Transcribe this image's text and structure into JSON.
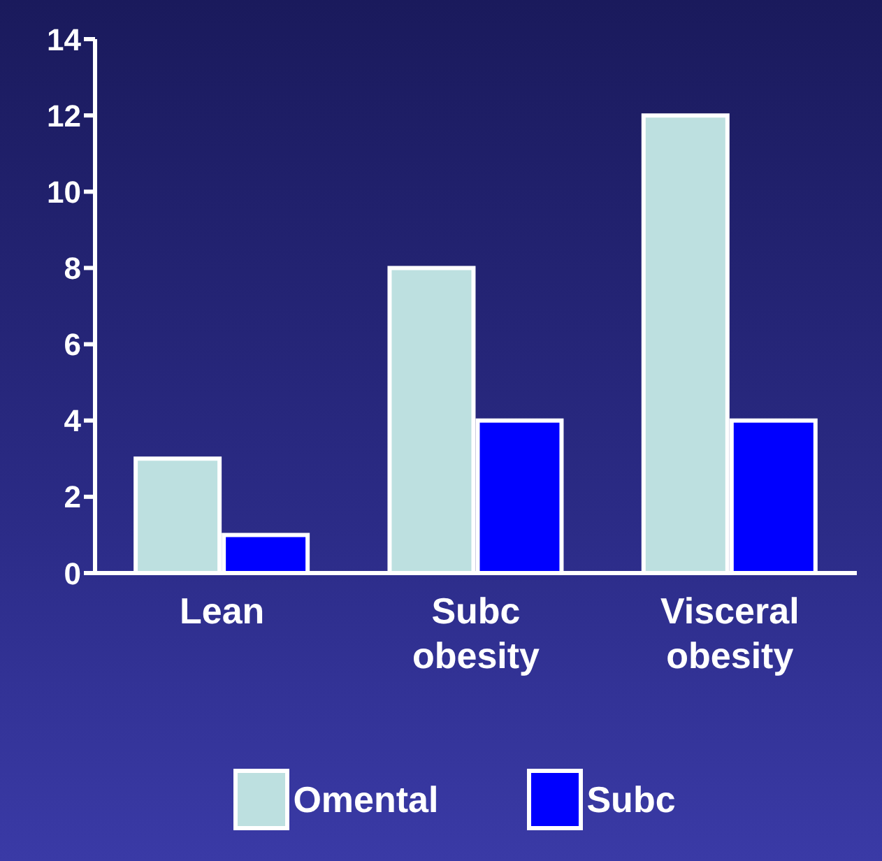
{
  "chart_data": {
    "type": "bar",
    "categories": [
      "Lean",
      "Subc obesity",
      "Visceral obesity"
    ],
    "series": [
      {
        "name": "Omental",
        "color": "#bde0e0",
        "values": [
          3,
          8,
          12
        ]
      },
      {
        "name": "Subc",
        "color": "#0000ff",
        "values": [
          1,
          4,
          4
        ]
      }
    ],
    "ylim": [
      0,
      14
    ],
    "yticks": [
      0,
      2,
      4,
      6,
      8,
      10,
      12,
      14
    ],
    "grid": false,
    "legend": "bottom"
  }
}
